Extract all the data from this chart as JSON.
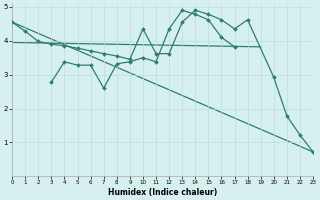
{
  "xlabel": "Humidex (Indice chaleur)",
  "bg_color": "#d6f0ef",
  "grid_color": "#c0dedd",
  "line_color": "#2e7d6e",
  "xlim": [
    0,
    23
  ],
  "ylim": [
    0,
    5.1
  ],
  "xticks": [
    0,
    1,
    2,
    3,
    4,
    5,
    6,
    7,
    8,
    9,
    10,
    11,
    12,
    13,
    14,
    15,
    16,
    17,
    18,
    19,
    20,
    21,
    22,
    23
  ],
  "yticks": [
    1,
    2,
    3,
    4,
    5
  ],
  "line1_x": [
    0,
    1,
    2,
    3,
    4,
    5,
    6,
    7,
    8,
    9,
    10,
    11,
    12,
    13,
    14,
    15,
    16,
    17,
    18,
    20,
    21,
    22,
    23
  ],
  "line1_y": [
    4.55,
    4.28,
    3.98,
    3.9,
    3.85,
    3.78,
    3.7,
    3.62,
    3.55,
    3.45,
    4.35,
    3.62,
    3.62,
    4.55,
    4.9,
    4.78,
    4.62,
    4.35,
    4.62,
    2.92,
    1.78,
    1.22,
    0.72
  ],
  "line2_x": [
    3,
    4,
    5,
    6,
    7,
    8,
    9,
    10,
    11,
    12,
    13,
    14,
    15,
    16,
    17
  ],
  "line2_y": [
    2.78,
    3.38,
    3.28,
    3.28,
    2.6,
    3.32,
    3.38,
    3.5,
    3.38,
    4.35,
    4.9,
    4.78,
    4.62,
    4.1,
    3.82
  ],
  "line3_x": [
    0,
    23
  ],
  "line3_y": [
    4.55,
    0.72
  ],
  "line4_x": [
    0,
    19
  ],
  "line4_y": [
    3.95,
    3.82
  ]
}
